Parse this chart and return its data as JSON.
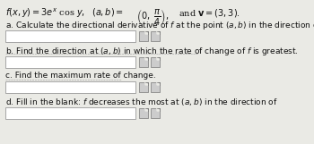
{
  "bg_color": "#eaeae5",
  "text_color": "#111111",
  "box_color": "#ffffff",
  "box_edge_color": "#999999",
  "icon_color": "#cccccc",
  "icon_edge_color": "#777777",
  "title_fontsize": 7.0,
  "q_fontsize": 6.5,
  "figsize": [
    3.5,
    1.61
  ],
  "dpi": 100
}
